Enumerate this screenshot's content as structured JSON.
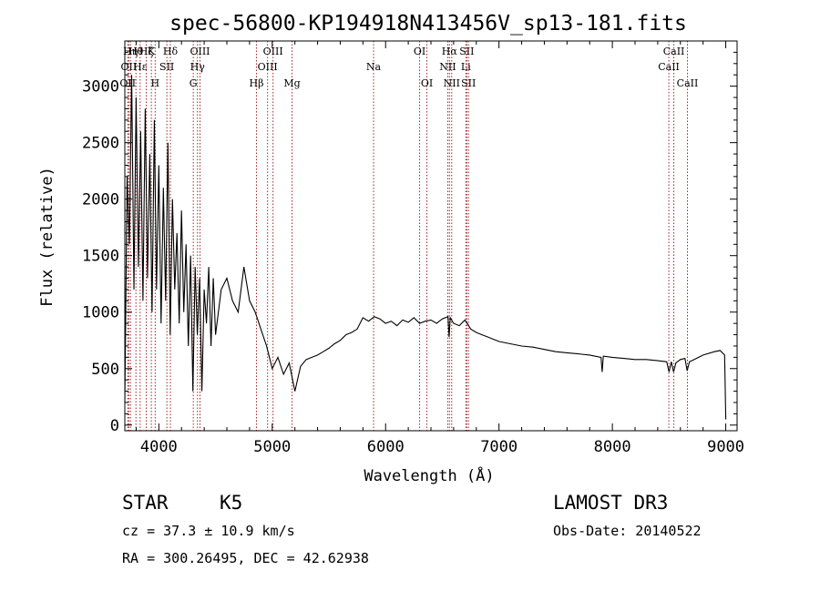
{
  "chart_data": {
    "type": "line",
    "title": "spec-56800-KP194918N413456V_sp13-181.fits",
    "xlabel": "Wavelength (Å)",
    "ylabel": "Flux (relative)",
    "xlim": [
      3700,
      9100
    ],
    "ylim": [
      -50,
      3400
    ],
    "x_ticks": [
      4000,
      5000,
      6000,
      7000,
      8000,
      9000
    ],
    "y_ticks": [
      0,
      500,
      1000,
      1500,
      2000,
      2500,
      3000
    ],
    "series": [
      {
        "name": "spectrum",
        "x": [
          3700,
          3720,
          3740,
          3760,
          3780,
          3800,
          3820,
          3840,
          3860,
          3880,
          3900,
          3920,
          3940,
          3960,
          3980,
          4000,
          4020,
          4040,
          4060,
          4080,
          4100,
          4120,
          4140,
          4160,
          4180,
          4200,
          4220,
          4240,
          4260,
          4280,
          4300,
          4320,
          4340,
          4360,
          4380,
          4400,
          4420,
          4440,
          4460,
          4480,
          4500,
          4550,
          4600,
          4650,
          4700,
          4750,
          4800,
          4850,
          4900,
          4950,
          5000,
          5050,
          5100,
          5150,
          5200,
          5250,
          5300,
          5350,
          5400,
          5450,
          5500,
          5550,
          5600,
          5650,
          5700,
          5750,
          5800,
          5850,
          5900,
          5950,
          6000,
          6050,
          6100,
          6150,
          6200,
          6250,
          6300,
          6350,
          6400,
          6450,
          6500,
          6550,
          6560,
          6570,
          6600,
          6650,
          6700,
          6720,
          6750,
          6800,
          6850,
          6900,
          6950,
          7000,
          7100,
          7200,
          7300,
          7400,
          7500,
          7600,
          7700,
          7800,
          7900,
          7910,
          7920,
          8000,
          8100,
          8200,
          8300,
          8400,
          8480,
          8500,
          8520,
          8540,
          8560,
          8600,
          8640,
          8660,
          8680,
          8700,
          8800,
          8900,
          8950,
          8990,
          9000
        ],
        "y": [
          200,
          2200,
          1600,
          3100,
          1200,
          2900,
          1400,
          2600,
          1100,
          2800,
          1300,
          2400,
          1000,
          2700,
          1200,
          2300,
          900,
          2100,
          1100,
          2500,
          800,
          2000,
          1200,
          1700,
          900,
          1900,
          1000,
          1600,
          700,
          1500,
          300,
          1400,
          800,
          1300,
          300,
          1200,
          900,
          1400,
          700,
          1300,
          800,
          1200,
          1300,
          1100,
          1000,
          1400,
          1100,
          1000,
          850,
          700,
          500,
          600,
          450,
          550,
          300,
          520,
          580,
          600,
          620,
          650,
          680,
          720,
          750,
          800,
          820,
          850,
          950,
          920,
          960,
          940,
          900,
          920,
          880,
          930,
          910,
          950,
          900,
          920,
          930,
          900,
          940,
          960,
          780,
          950,
          900,
          880,
          930,
          900,
          850,
          820,
          800,
          780,
          760,
          740,
          720,
          700,
          690,
          670,
          650,
          640,
          630,
          620,
          600,
          470,
          610,
          600,
          590,
          580,
          580,
          570,
          560,
          470,
          560,
          470,
          550,
          580,
          590,
          480,
          560,
          570,
          620,
          650,
          660,
          620,
          50
        ]
      }
    ],
    "lines": [
      {
        "wave": 3726,
        "label": "OII",
        "row": 3
      },
      {
        "wave": 3735,
        "label": "OII",
        "row": 2
      },
      {
        "wave": 3750,
        "label": "Hη",
        "row": 1
      },
      {
        "wave": 3798,
        "label": "Hθ",
        "row": 1
      },
      {
        "wave": 3835,
        "label": "Hε",
        "row": 2
      },
      {
        "wave": 3889,
        "label": "Hζ",
        "row": 1
      },
      {
        "wave": 3934,
        "label": "K",
        "row": 1
      },
      {
        "wave": 3968,
        "label": "H",
        "row": 3
      },
      {
        "wave": 4071,
        "label": "SII",
        "row": 2
      },
      {
        "wave": 4102,
        "label": "Hδ",
        "row": 1
      },
      {
        "wave": 4304,
        "label": "G",
        "row": 3
      },
      {
        "wave": 4341,
        "label": "Hγ",
        "row": 2
      },
      {
        "wave": 4363,
        "label": "OIII",
        "row": 1
      },
      {
        "wave": 4861,
        "label": "Hβ",
        "row": 3
      },
      {
        "wave": 4959,
        "label": "OIII",
        "row": 2
      },
      {
        "wave": 5007,
        "label": "OIII",
        "row": 1
      },
      {
        "wave": 5175,
        "label": "Mg",
        "row": 3
      },
      {
        "wave": 5894,
        "label": "Na",
        "row": 2
      },
      {
        "wave": 6300,
        "label": "OI",
        "row": 1
      },
      {
        "wave": 6364,
        "label": "OI",
        "row": 3
      },
      {
        "wave": 6548,
        "label": "NII",
        "row": 2
      },
      {
        "wave": 6563,
        "label": "Hα",
        "row": 1
      },
      {
        "wave": 6583,
        "label": "NII",
        "row": 3
      },
      {
        "wave": 6708,
        "label": "Li",
        "row": 2
      },
      {
        "wave": 6716,
        "label": "SII",
        "row": 1
      },
      {
        "wave": 6731,
        "label": "SII",
        "row": 3
      },
      {
        "wave": 8498,
        "label": "CaII",
        "row": 2
      },
      {
        "wave": 8542,
        "label": "CaII",
        "row": 1
      },
      {
        "wave": 8662,
        "label": "CaII",
        "row": 3
      }
    ],
    "line_color": "#a0262a"
  },
  "info": {
    "object_class": "STAR",
    "subclass": "K5",
    "redshift": "cz = 37.3 ± 10.9 km/s",
    "coords": "RA = 300.26495, DEC =  42.62938",
    "survey": "LAMOST DR3",
    "obs_date": "Obs-Date: 20140522"
  }
}
